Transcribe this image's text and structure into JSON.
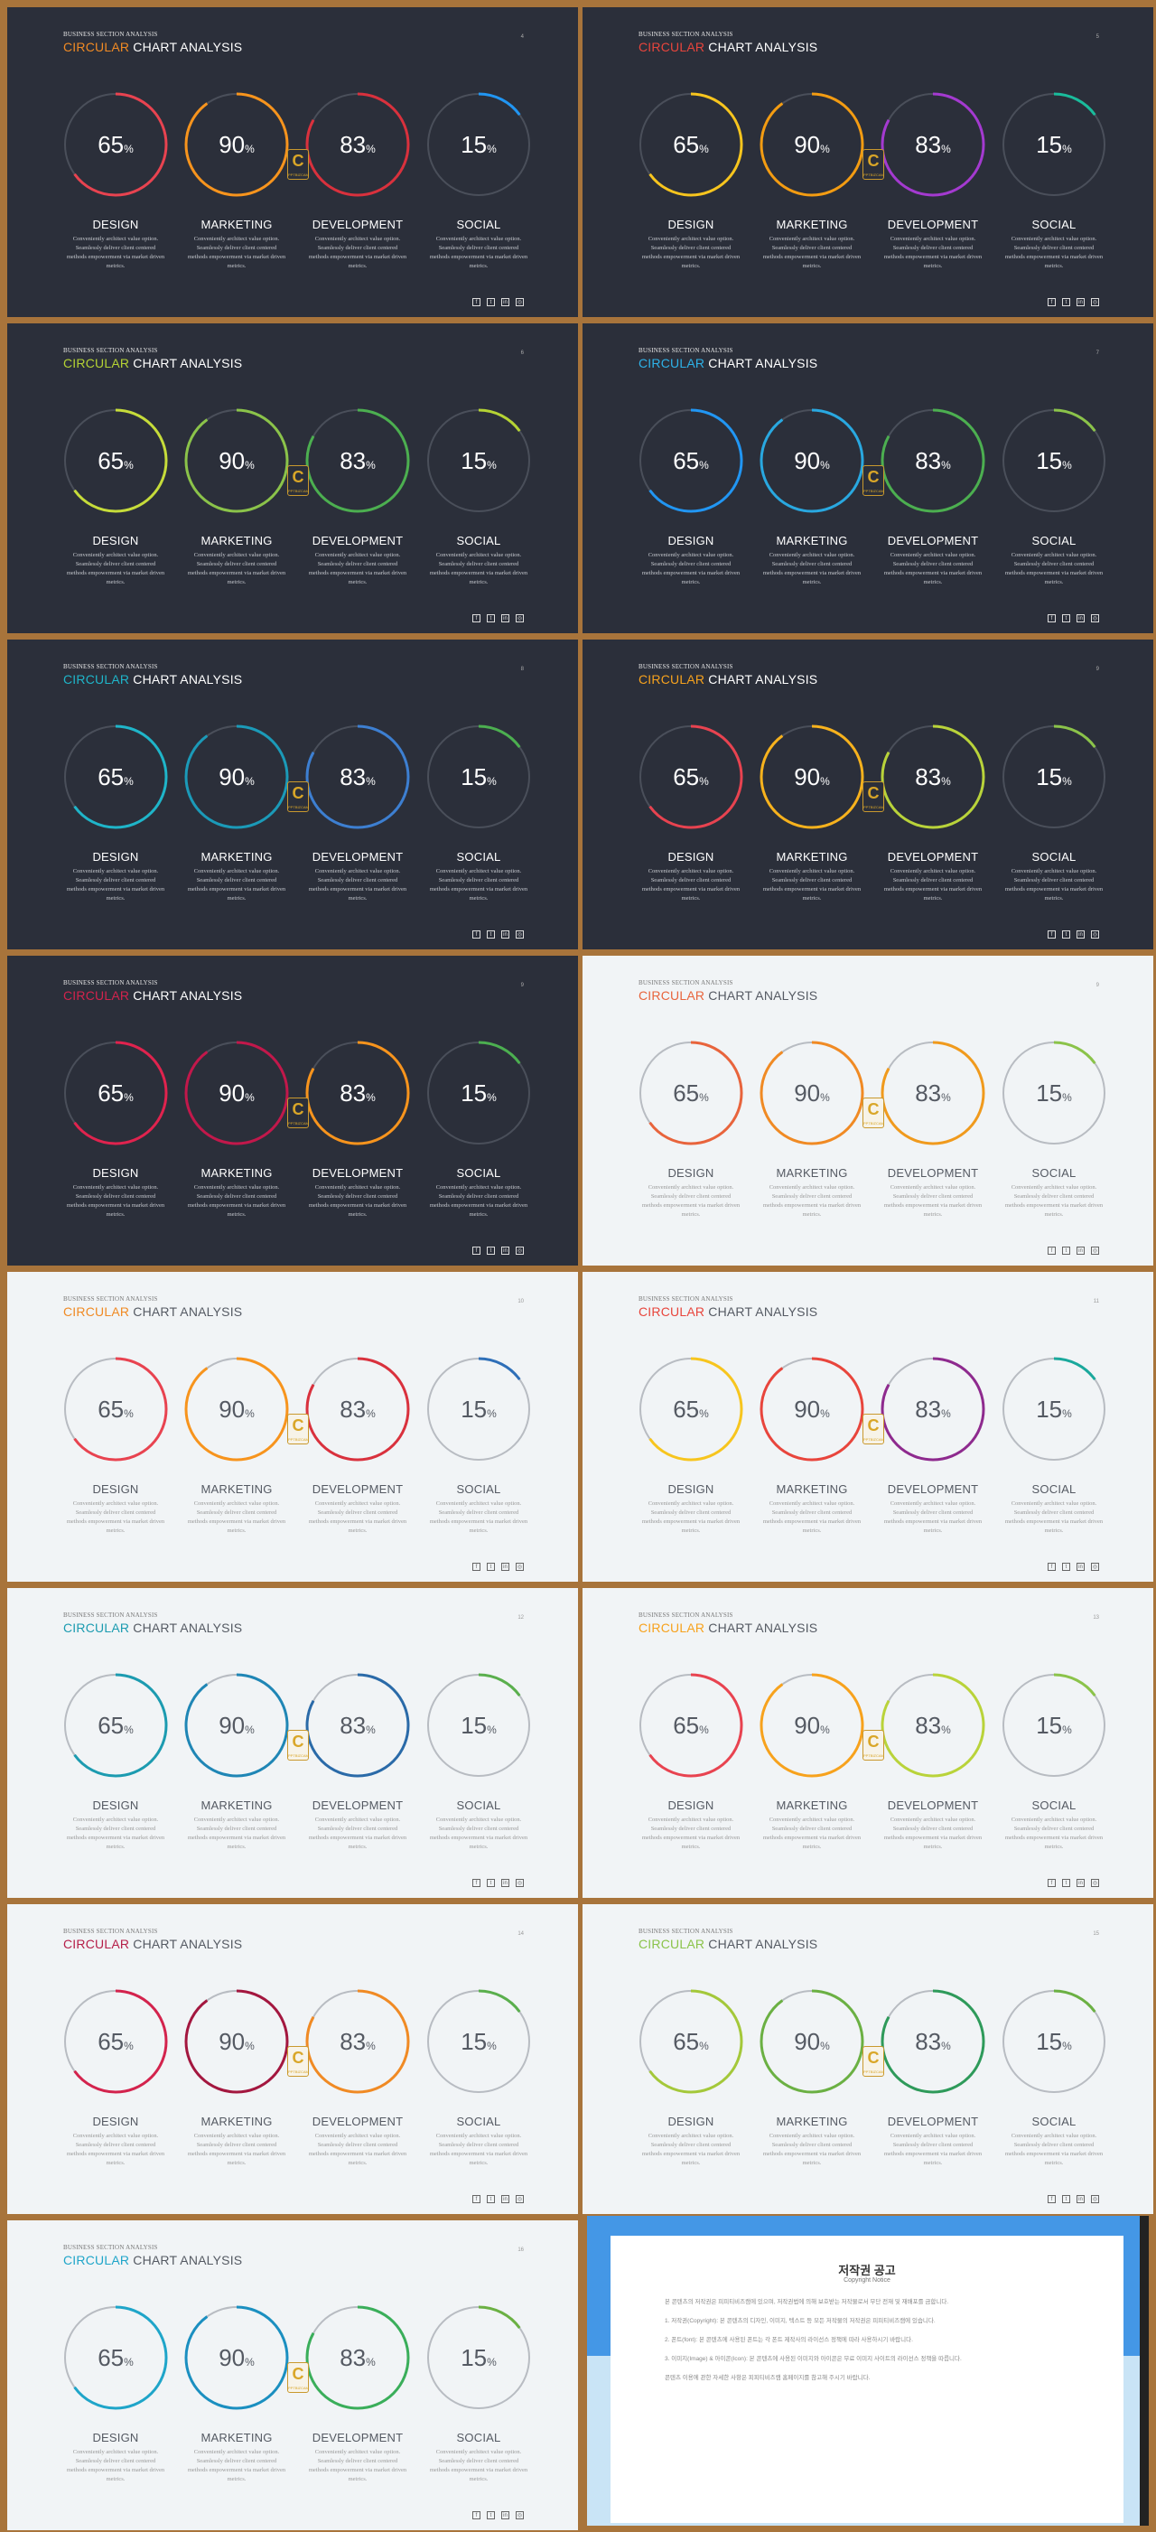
{
  "deck": {
    "kicker": "BUSINESS SECTION ANALYSIS",
    "title_accent": "CIRCULAR",
    "title_rest": "CHART ANALYSIS",
    "pct_symbol": "%",
    "watermark_letter": "C",
    "watermark_small": "PPTBIZCAM",
    "columns": [
      {
        "label": "DESIGN",
        "value": 65,
        "desc": [
          "Conveniently architect value option.",
          "Seamlessly deliver client centered",
          "methods empowerment via market driven",
          "metrics."
        ]
      },
      {
        "label": "MARKETING",
        "value": 90,
        "desc": [
          "Conveniently architect value option.",
          "Seamlessly deliver client centered",
          "methods empowerment via market driven",
          "metrics."
        ]
      },
      {
        "label": "DEVELOPMENT",
        "value": 83,
        "desc": [
          "Conveniently architect value option.",
          "Seamlessly deliver client centered",
          "methods empowerment via market driven",
          "metrics."
        ]
      },
      {
        "label": "SOCIAL",
        "value": 15,
        "desc": [
          "Conveniently architect value option.",
          "Seamlessly deliver client centered",
          "methods empowerment via market driven",
          "metrics."
        ]
      }
    ],
    "social_icons": [
      {
        "name": "facebook-icon",
        "glyph": "f"
      },
      {
        "name": "twitter-icon",
        "glyph": "t"
      },
      {
        "name": "linkedin-icon",
        "glyph": "in"
      },
      {
        "name": "instagram-icon",
        "glyph": "◎"
      }
    ]
  },
  "slides": [
    {
      "page": "4",
      "theme": "dark",
      "accent": "#f08a24",
      "colors": [
        "#e84350",
        "#f7941d",
        "#d9313d",
        "#2196f3"
      ]
    },
    {
      "page": "5",
      "theme": "dark",
      "accent": "#e8453c",
      "colors": [
        "#f7c51e",
        "#f39c12",
        "#a43ad0",
        "#1abc9c"
      ]
    },
    {
      "page": "6",
      "theme": "dark",
      "accent": "#b5d334",
      "colors": [
        "#c6dc3a",
        "#8bc34a",
        "#4caf50",
        "#b5d334"
      ]
    },
    {
      "page": "7",
      "theme": "dark",
      "accent": "#2eb2e8",
      "colors": [
        "#2196f3",
        "#29a8e0",
        "#4caf50",
        "#8bc34a"
      ]
    },
    {
      "page": "8",
      "theme": "dark",
      "accent": "#1fb5c9",
      "colors": [
        "#1fb5c9",
        "#1b9ab8",
        "#3d7fd1",
        "#4caf50"
      ]
    },
    {
      "page": "9",
      "theme": "dark",
      "accent": "#f7a21d",
      "colors": [
        "#e84350",
        "#f7b21d",
        "#b9d33a",
        "#8bc34a"
      ]
    },
    {
      "page": "9",
      "theme": "dark",
      "accent": "#d3234d",
      "colors": [
        "#e0234e",
        "#c2184b",
        "#f7941d",
        "#4caf50"
      ]
    },
    {
      "page": "9",
      "theme": "light",
      "accent": "#e8643c",
      "colors": [
        "#e8643c",
        "#f08a24",
        "#f09a1d",
        "#8bc34a"
      ]
    },
    {
      "page": "10",
      "theme": "light",
      "accent": "#f08a24",
      "colors": [
        "#e84350",
        "#f7941d",
        "#d9313d",
        "#2e6fb8"
      ]
    },
    {
      "page": "11",
      "theme": "light",
      "accent": "#e8453c",
      "colors": [
        "#f7c51e",
        "#e8453c",
        "#8e2a8e",
        "#1aa89c"
      ]
    },
    {
      "page": "12",
      "theme": "light",
      "accent": "#1c9bb0",
      "colors": [
        "#1c9bb0",
        "#1f86b5",
        "#2a6aa8",
        "#5aaf4d"
      ]
    },
    {
      "page": "13",
      "theme": "light",
      "accent": "#f7a21d",
      "colors": [
        "#e84350",
        "#f7a21d",
        "#b9d33a",
        "#8bc34a"
      ]
    },
    {
      "page": "14",
      "theme": "light",
      "accent": "#b51e48",
      "colors": [
        "#d3234d",
        "#a3173f",
        "#f08a24",
        "#5aaf4d"
      ]
    },
    {
      "page": "15",
      "theme": "light",
      "accent": "#8bc34a",
      "colors": [
        "#a4c83a",
        "#6bb043",
        "#2e9a5a",
        "#6bb043"
      ]
    },
    {
      "page": "16",
      "theme": "light",
      "accent": "#1fa5c9",
      "colors": [
        "#1fa5c9",
        "#1b8fc0",
        "#3aae5a",
        "#6bb043"
      ]
    }
  ],
  "notice": {
    "title": "저작권 공고",
    "subtitle": "Copyright Notice",
    "paragraphs": [
      "본 콘텐츠의 저작권은 피피티비즈캠에 있으며, 저작권법에 의해 보호받는 저작물로서 무단 전재 및 재배포를 금합니다.",
      "1. 저작권(Copyright): 본 콘텐츠의 디자인, 이미지, 텍스트 등 모든 저작물의 저작권은 피피티비즈캠에 있습니다.",
      "2. 폰트(font): 본 콘텐츠에 사용된 폰트는 각 폰트 제작사의 라이선스 정책에 따라 사용하시기 바랍니다.",
      "3. 이미지(Image) & 아이콘(Icon): 본 콘텐츠에 사용된 이미지와 아이콘은 무료 이미지 사이트의 라이선스 정책을 따릅니다.",
      "콘텐츠 이용에 관한 자세한 사항은 피피티비즈캠 홈페이지를 참고해 주시기 바랍니다."
    ]
  }
}
